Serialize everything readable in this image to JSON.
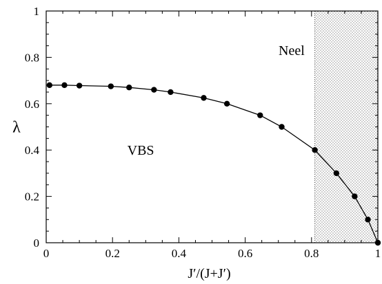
{
  "chart_data": {
    "type": "scatter",
    "title": "",
    "xlabel": "J′/(J+J′)",
    "ylabel": "λ",
    "xlim": [
      0,
      1
    ],
    "ylim": [
      0,
      1
    ],
    "x_ticks": [
      "0",
      "0.2",
      "0.4",
      "0.6",
      "0.8",
      "1"
    ],
    "y_ticks": [
      "0",
      "0.2",
      "0.4",
      "0.6",
      "0.8",
      "1"
    ],
    "grid": false,
    "legend": "none",
    "shaded_region": {
      "x_range": [
        0.81,
        1
      ],
      "pattern": "dotted"
    },
    "annotations": [
      {
        "text": "Neel",
        "x": 0.74,
        "y": 0.81
      },
      {
        "text": "VBS",
        "x": 0.285,
        "y": 0.38
      }
    ],
    "series": [
      {
        "x": [
          0.01,
          0.055,
          0.1,
          0.195,
          0.25,
          0.325,
          0.375,
          0.475,
          0.545,
          0.645,
          0.71,
          0.81,
          0.875,
          0.93,
          0.97,
          1.0
        ],
        "y": [
          0.68,
          0.68,
          0.678,
          0.675,
          0.67,
          0.66,
          0.65,
          0.625,
          0.6,
          0.55,
          0.5,
          0.4,
          0.3,
          0.2,
          0.1,
          0.0
        ],
        "color": "#000000",
        "marker": "circle",
        "line": "solid"
      }
    ]
  }
}
